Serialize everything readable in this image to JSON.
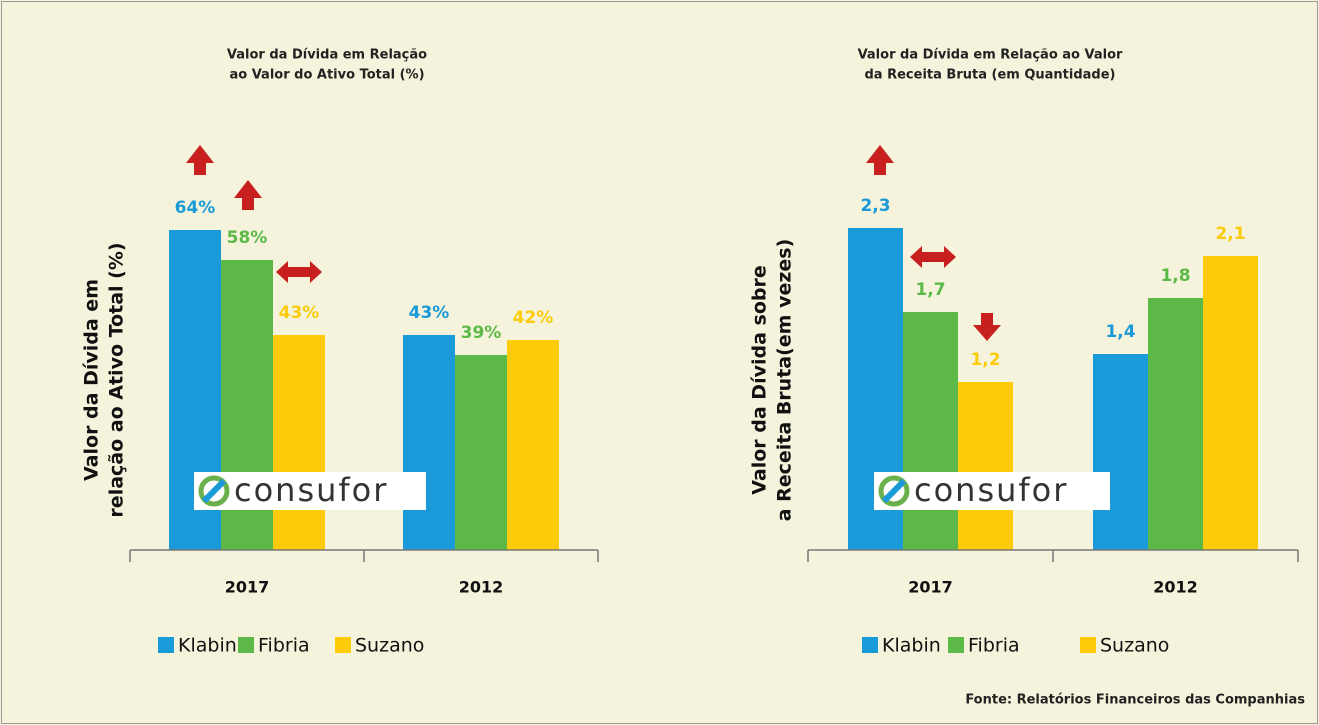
{
  "chart_data": [
    {
      "type": "bar",
      "title": [
        "Valor da Dívida em Relação",
        "ao Valor do Ativo Total (%)"
      ],
      "y_label": [
        "Valor da Dívida em",
        "relação ao Ativo Total (%)"
      ],
      "categories": [
        "2017",
        "2012"
      ],
      "series": [
        {
          "name": "Klabin",
          "color": "#1a9ad9",
          "values": [
            64,
            43
          ],
          "value_labels": [
            "64%",
            "43%"
          ]
        },
        {
          "name": "Fibria",
          "color": "#5cb947",
          "values": [
            58,
            39
          ],
          "value_labels": [
            "58%",
            "39%"
          ]
        },
        {
          "name": "Suzano",
          "color": "#fccc0a",
          "values": [
            43,
            42
          ],
          "value_labels": [
            "43%",
            "42%"
          ]
        }
      ],
      "ylim": [
        0,
        80
      ],
      "watermark": "consufor"
    },
    {
      "type": "bar",
      "title": [
        "Valor da Dívida em Relação ao Valor",
        "da Receita Bruta (em Quantidade)"
      ],
      "y_label": [
        "Valor da Dívida sobre",
        "a Receita Bruta(em vezes)"
      ],
      "categories": [
        "2017",
        "2012"
      ],
      "series": [
        {
          "name": "Klabin",
          "color": "#1a9ad9",
          "values": [
            2.3,
            1.4
          ],
          "value_labels": [
            "2,3",
            "1,4"
          ]
        },
        {
          "name": "Fibria",
          "color": "#5cb947",
          "values": [
            1.7,
            1.8
          ],
          "value_labels": [
            "1,7",
            "1,8"
          ]
        },
        {
          "name": "Suzano",
          "color": "#fccc0a",
          "values": [
            1.2,
            2.1
          ],
          "value_labels": [
            "1,2",
            "2,1"
          ]
        }
      ],
      "ylim": [
        0,
        2.8
      ],
      "watermark": "consufor"
    }
  ],
  "source": "Fonte: Relatórios Financeiros das Companhias"
}
